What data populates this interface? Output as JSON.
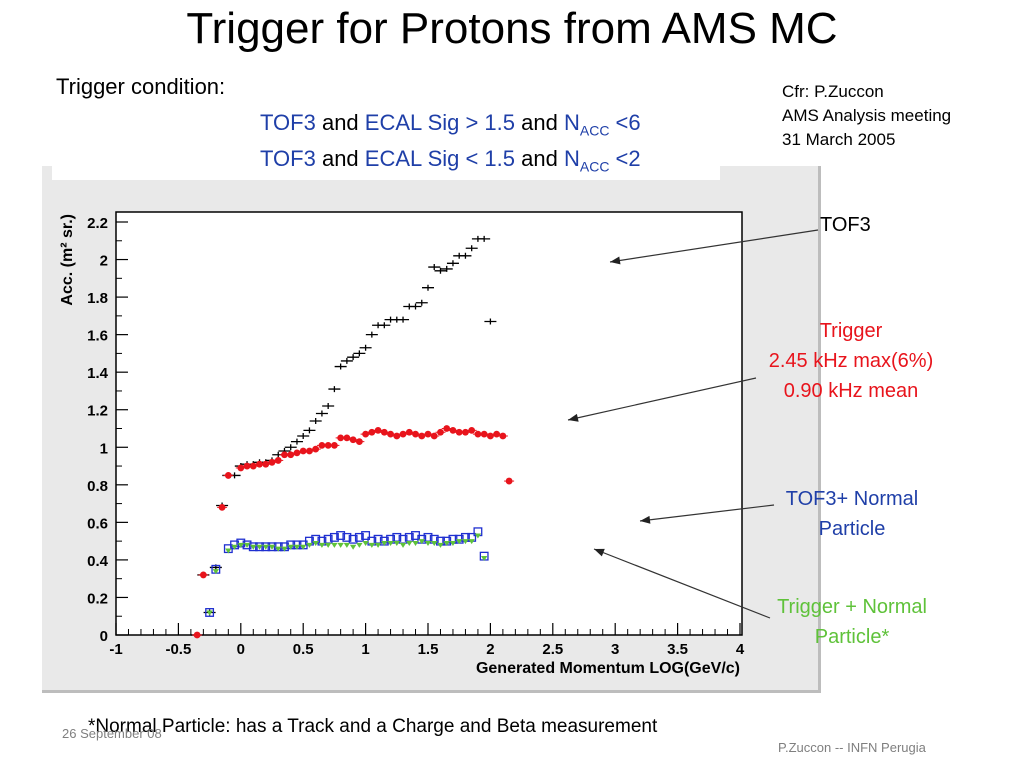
{
  "title": "Trigger for Protons from AMS MC",
  "condition": {
    "heading": "Trigger condition:",
    "line1": {
      "a": "TOF3",
      "and1": "and",
      "b": "ECAL Sig > 1.5",
      "and2": "and",
      "n": "N",
      "sub": "ACC",
      "rest": " <6"
    },
    "line2": {
      "a": "TOF3",
      "and1": "and",
      "b": "ECAL Sig < 1.5",
      "and2": "and",
      "n": "N",
      "sub": "ACC",
      "rest": " <2"
    }
  },
  "reference": {
    "line1": "Cfr: P.Zuccon",
    "line2": "AMS Analysis meeting",
    "line3": "31 March 2005"
  },
  "annotations": {
    "tof3": "TOF3",
    "trigger_1": "Trigger",
    "trigger_2": "2.45 kHz max(6%)",
    "trigger_3": "0.90 kHz mean",
    "tof3_normal_1": "TOF3+ Normal",
    "tof3_normal_2": "Particle",
    "trigger_normal_1": "Trigger + Normal",
    "trigger_normal_2": "Particle*"
  },
  "colors": {
    "tof3": "#000000",
    "trigger": "#e8141c",
    "tof3_normal": "#1f2fd0",
    "trigger_normal": "#5fc23a",
    "annotation_blue": "#1f3fa8"
  },
  "footnote": "*Normal Particle: has a Track and a Charge and Beta measurement",
  "date": "26 September 08",
  "footer": "P.Zuccon -- INFN Perugia",
  "chart_data": {
    "type": "scatter",
    "title": "",
    "xlabel": "Generated Momentum  LOG(GeV/c)",
    "ylabel": "Acc. (m² sr.)",
    "xlim": [
      -1,
      4
    ],
    "ylim": [
      0,
      2.2
    ],
    "xticks": [
      -1,
      -0.5,
      0,
      0.5,
      1,
      1.5,
      2,
      2.5,
      3,
      3.5,
      4
    ],
    "xtick_labels": [
      "-1",
      "-0.5",
      "0",
      "0.5",
      "1",
      "1.5",
      "2",
      "2.5",
      "3",
      "3.5",
      "4"
    ],
    "yticks": [
      0,
      0.2,
      0.4,
      0.6,
      0.8,
      1,
      1.2,
      1.4,
      1.6,
      1.8,
      2,
      2.2
    ],
    "ytick_labels": [
      "0",
      "0.2",
      "0.4",
      "0.6",
      "0.8",
      "1",
      "1.2",
      "1.4",
      "1.6",
      "1.8",
      "2",
      "2.2"
    ],
    "grid": false,
    "x": [
      -0.35,
      -0.3,
      -0.25,
      -0.2,
      -0.15,
      -0.1,
      -0.05,
      0,
      0.05,
      0.1,
      0.15,
      0.2,
      0.25,
      0.3,
      0.35,
      0.4,
      0.45,
      0.5,
      0.55,
      0.6,
      0.65,
      0.7,
      0.75,
      0.8,
      0.85,
      0.9,
      0.95,
      1,
      1.05,
      1.1,
      1.15,
      1.2,
      1.25,
      1.3,
      1.35,
      1.4,
      1.45,
      1.5,
      1.55,
      1.6,
      1.65,
      1.7,
      1.75,
      1.8,
      1.85,
      1.9,
      1.95,
      2,
      2.05,
      2.1,
      2.15,
      2.2,
      2.25,
      2.3,
      2.35,
      2.4,
      2.45,
      2.5,
      2.55,
      2.6,
      2.65,
      2.7,
      2.75,
      2.8,
      2.85,
      2.9,
      2.95,
      3,
      3.05,
      3.1,
      3.15,
      3.2,
      3.25
    ],
    "series": [
      {
        "name": "TOF3",
        "marker": "cross",
        "values": [
          0.0,
          0.32,
          0.12,
          0.36,
          0.69,
          0.85,
          0.85,
          0.9,
          0.91,
          0.91,
          0.92,
          0.92,
          0.93,
          0.96,
          0.98,
          1.0,
          1.03,
          1.06,
          1.09,
          1.14,
          1.18,
          1.22,
          1.31,
          1.43,
          1.46,
          1.48,
          1.5,
          1.53,
          1.6,
          1.65,
          1.65,
          1.68,
          1.68,
          1.68,
          1.75,
          1.75,
          1.77,
          1.85,
          1.96,
          1.94,
          1.95,
          1.98,
          2.02,
          2.02,
          2.06,
          2.11,
          2.11,
          1.67,
          null,
          null,
          null,
          null,
          null,
          null,
          null,
          null,
          null,
          null,
          null,
          null,
          null,
          null,
          null,
          null,
          null,
          null,
          null,
          null,
          null,
          null,
          null,
          null,
          null
        ]
      },
      {
        "name": "Trigger",
        "marker": "filled-circle",
        "values": [
          0.0,
          0.32,
          null,
          null,
          0.68,
          0.85,
          null,
          0.89,
          0.9,
          0.9,
          0.91,
          0.91,
          0.92,
          0.93,
          0.96,
          0.96,
          0.97,
          0.98,
          0.98,
          0.99,
          1.01,
          1.01,
          1.01,
          1.05,
          1.05,
          1.04,
          1.03,
          1.07,
          1.08,
          1.09,
          1.08,
          1.07,
          1.06,
          1.07,
          1.08,
          1.07,
          1.06,
          1.07,
          1.06,
          1.08,
          1.1,
          1.09,
          1.08,
          1.08,
          1.09,
          1.07,
          1.07,
          1.06,
          1.07,
          1.06,
          0.82,
          null,
          null,
          null,
          null,
          null,
          null,
          null,
          null,
          null,
          null,
          null,
          null,
          null,
          null,
          null,
          null,
          null,
          null,
          null,
          null,
          null,
          null
        ]
      },
      {
        "name": "TOF3+ Normal Particle",
        "marker": "open-square",
        "values": [
          null,
          null,
          0.12,
          0.35,
          null,
          0.46,
          0.48,
          0.49,
          0.48,
          0.47,
          0.47,
          0.47,
          0.47,
          0.47,
          0.47,
          0.48,
          0.48,
          0.48,
          0.5,
          0.51,
          0.5,
          0.51,
          0.52,
          0.53,
          0.52,
          0.51,
          0.52,
          0.53,
          0.5,
          0.51,
          0.5,
          0.51,
          0.52,
          0.51,
          0.52,
          0.53,
          0.51,
          0.52,
          0.51,
          0.5,
          0.5,
          0.51,
          0.51,
          0.52,
          0.52,
          0.55,
          0.42,
          null,
          null,
          null,
          null,
          null,
          null,
          null,
          null,
          null,
          null,
          null,
          null,
          null,
          null,
          null,
          null,
          null,
          null,
          null,
          null,
          null,
          null,
          null,
          null,
          null,
          null
        ]
      },
      {
        "name": "Trigger + Normal Particle*",
        "marker": "filled-triangle",
        "values": [
          null,
          null,
          0.12,
          0.34,
          null,
          0.45,
          0.47,
          0.48,
          0.48,
          0.47,
          0.47,
          0.47,
          0.47,
          0.46,
          0.46,
          0.47,
          0.47,
          0.47,
          0.48,
          0.49,
          0.48,
          0.48,
          0.48,
          0.48,
          0.48,
          0.47,
          0.48,
          0.49,
          0.48,
          0.48,
          0.49,
          0.49,
          0.49,
          0.48,
          0.49,
          0.49,
          0.5,
          0.49,
          0.49,
          0.48,
          0.49,
          0.49,
          0.5,
          0.5,
          0.5,
          0.53,
          0.41,
          null,
          null,
          null,
          null,
          null,
          null,
          null,
          null,
          null,
          null,
          null,
          null,
          null,
          null,
          null,
          null,
          null,
          null,
          null,
          null,
          null,
          null,
          null,
          null,
          null,
          null
        ]
      }
    ]
  }
}
